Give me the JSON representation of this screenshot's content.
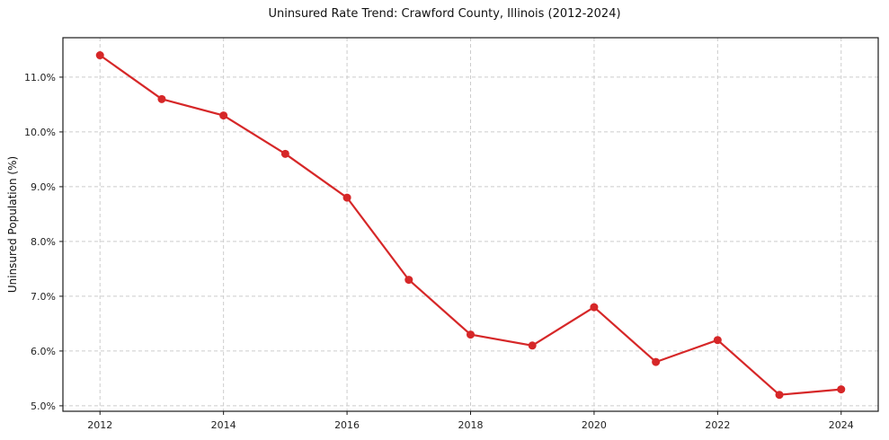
{
  "chart_data": {
    "type": "line",
    "title": "Uninsured Rate Trend: Crawford County, Illinois (2012-2024)",
    "xlabel": "",
    "ylabel": "Uninsured Population (%)",
    "x": [
      2012,
      2013,
      2014,
      2015,
      2016,
      2017,
      2018,
      2019,
      2020,
      2021,
      2022,
      2023,
      2024
    ],
    "values": [
      11.4,
      10.6,
      10.3,
      9.6,
      8.8,
      7.3,
      6.3,
      6.1,
      6.8,
      5.8,
      6.2,
      5.2,
      5.3
    ],
    "x_ticks": [
      2012,
      2014,
      2016,
      2018,
      2020,
      2022,
      2024
    ],
    "y_ticks": [
      5.0,
      6.0,
      7.0,
      8.0,
      9.0,
      10.0,
      11.0
    ],
    "y_tick_suffix": "%",
    "y_tick_decimals": 1,
    "xlim": [
      2011.4,
      2024.6
    ],
    "ylim": [
      4.9,
      11.72
    ],
    "grid": true,
    "grid_style": "dashed",
    "legend": "none",
    "line_color": "#d62728",
    "marker": "circle",
    "grid_color": "#cccccc",
    "axis_color": "#1a1a1a"
  }
}
